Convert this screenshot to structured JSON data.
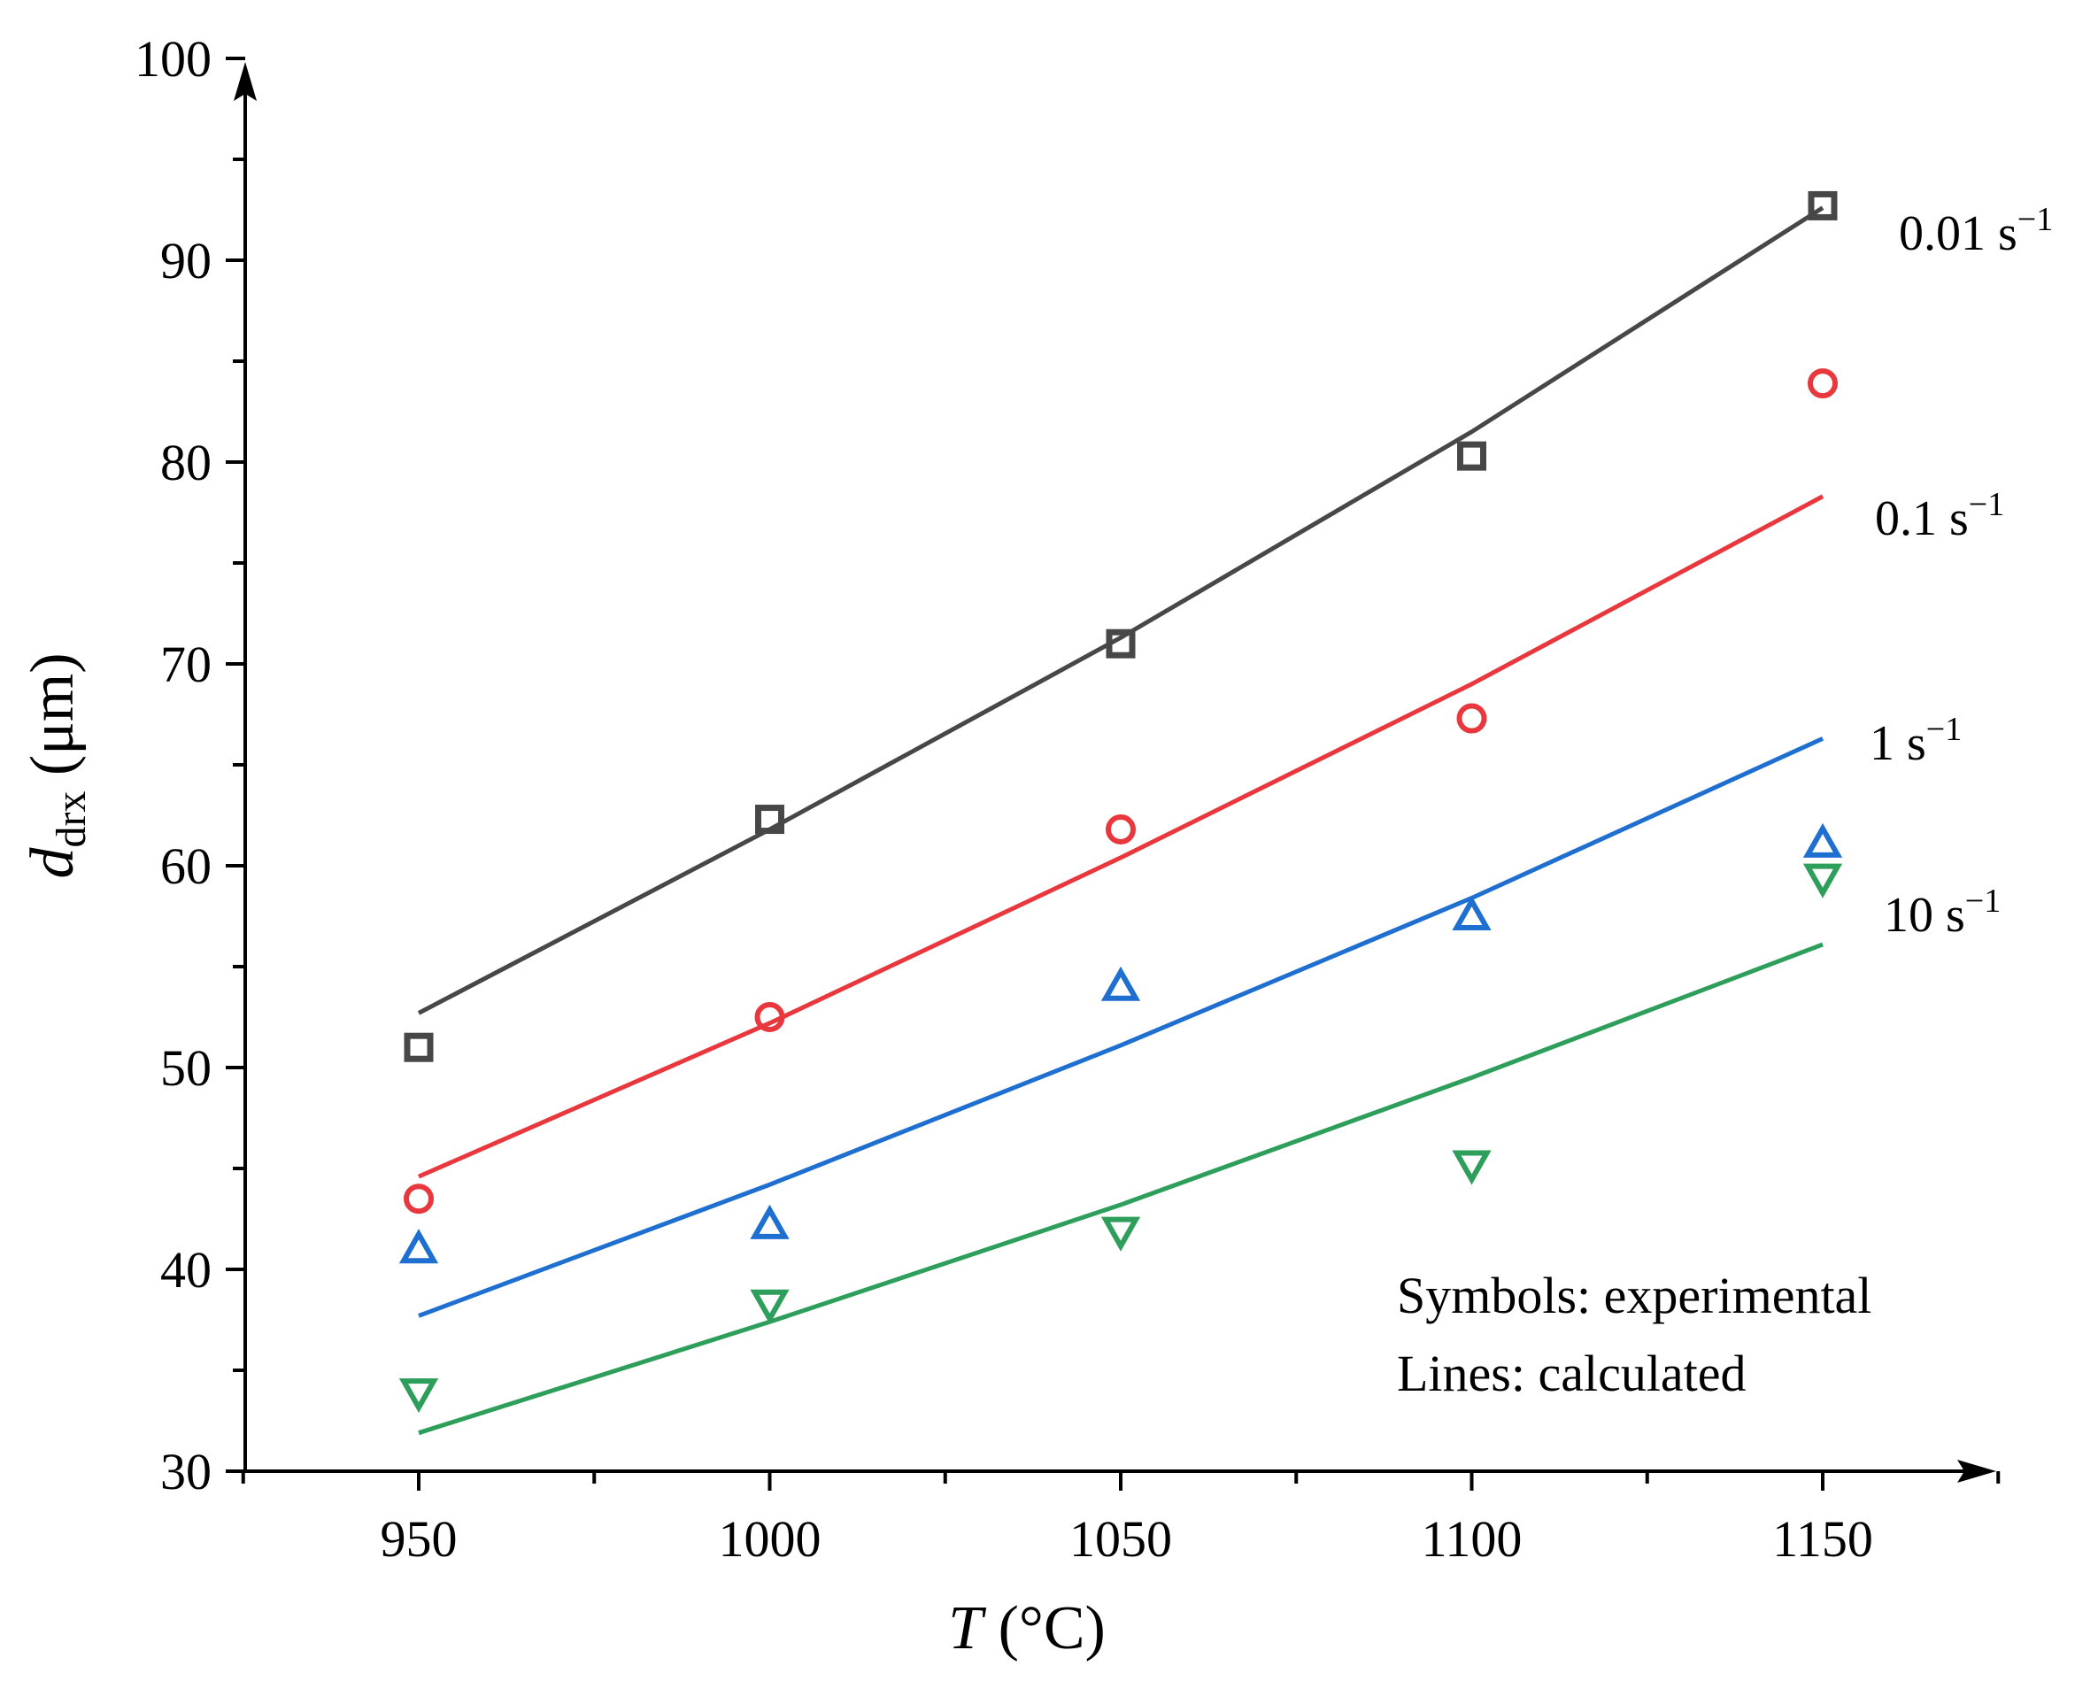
{
  "chart_data": {
    "type": "scatter",
    "x_axis": {
      "label_italic": "T",
      "label_rest": " (°C)",
      "ticks": [
        "950",
        "1000",
        "1050",
        "1100",
        "1150"
      ],
      "range": [
        925,
        1175
      ]
    },
    "y_axis": {
      "label_italic": "d",
      "label_sub": "drx",
      "label_rest": " (μm)",
      "ticks": [
        "30",
        "40",
        "50",
        "60",
        "70",
        "80",
        "90",
        "100"
      ],
      "range": [
        30,
        100
      ]
    },
    "grid": false,
    "x": [
      950,
      1000,
      1050,
      1100,
      1150
    ],
    "series": [
      {
        "name": "0.01 s",
        "name_sup": "−1",
        "color": "#474747",
        "marker": "square",
        "experimental": [
          51.0,
          62.3,
          71.0,
          80.3,
          92.7
        ],
        "calculated": [
          52.7,
          61.8,
          71.3,
          81.5,
          92.6
        ]
      },
      {
        "name": "0.1 s",
        "name_sup": "−1",
        "color": "#e8383d",
        "marker": "circle",
        "experimental": [
          43.5,
          52.5,
          61.8,
          67.3,
          83.9
        ],
        "calculated": [
          44.6,
          52.2,
          60.4,
          69.0,
          78.3
        ]
      },
      {
        "name": "1 s",
        "name_sup": "−1",
        "color": "#1f6fd1",
        "marker": "triangle-up",
        "experimental": [
          41.0,
          42.2,
          54.0,
          57.5,
          61.1
        ],
        "calculated": [
          37.7,
          44.2,
          51.1,
          58.4,
          66.3
        ]
      },
      {
        "name": "10 s",
        "name_sup": "−1",
        "color": "#2e9e5b",
        "marker": "triangle-down",
        "experimental": [
          33.9,
          38.3,
          41.9,
          45.2,
          59.4
        ],
        "calculated": [
          31.9,
          37.4,
          43.2,
          49.5,
          56.1
        ]
      }
    ],
    "annotations": [
      "Symbols: experimental",
      "Lines: calculated"
    ]
  }
}
